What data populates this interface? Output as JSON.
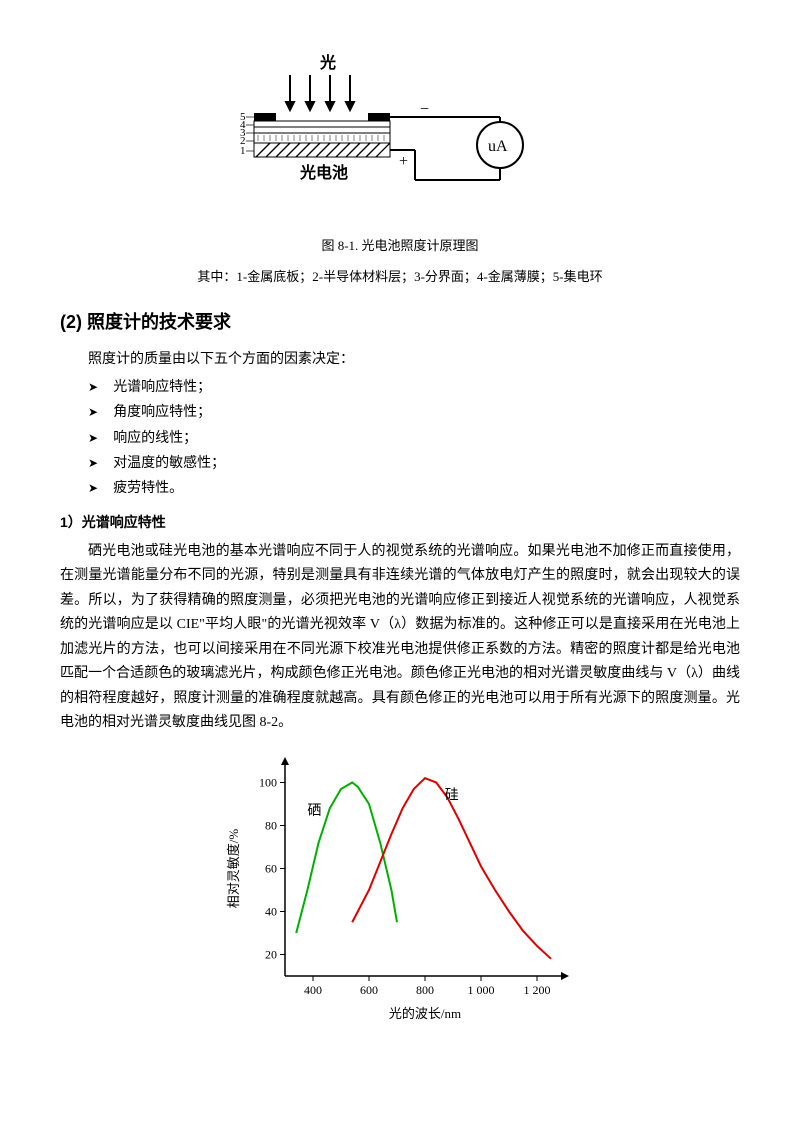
{
  "figure1": {
    "type": "diagram",
    "title": "光",
    "cell_label": "光电池",
    "meter_label": "uA",
    "minus": "−",
    "plus": "+",
    "layer_numbers": [
      "5",
      "4",
      "3",
      "2",
      "1"
    ],
    "caption": "图 8-1. 光电池照度计原理图",
    "legend": "其中：1-金属底板；2-半导体材料层；3-分界面；4-金属薄膜；5-集电环",
    "colors": {
      "stroke": "#000000",
      "bg": "#ffffff"
    }
  },
  "section_heading": "(2) 照度计的技术要求",
  "intro": "照度计的质量由以下五个方面的因素决定：",
  "bullets": [
    "光谱响应特性；",
    "角度响应特性；",
    "响应的线性；",
    "对温度的敏感性；",
    "疲劳特性。"
  ],
  "sub_heading": "1）光谱响应特性",
  "paragraph": "硒光电池或硅光电池的基本光谱响应不同于人的视觉系统的光谱响应。如果光电池不加修正而直接使用，在测量光谱能量分布不同的光源，特别是测量具有非连续光谱的气体放电灯产生的照度时，就会出现较大的误差。所以，为了获得精确的照度测量，必须把光电池的光谱响应修正到接近人视觉系统的光谱响应，人视觉系统的光谱响应是以 CIE\"平均人眼\"的光谱光视效率 V（λ）数据为标准的。这种修正可以是直接采用在光电池上加滤光片的方法，也可以间接采用在不同光源下校准光电池提供修正系数的方法。精密的照度计都是给光电池匹配一个合适颜色的玻璃滤光片，构成颜色修正光电池。颜色修正光电池的相对光谱灵敏度曲线与 V（λ）曲线的相符程度越好，照度计测量的准确程度就越高。具有颜色修正的光电池可以用于所有光源下的照度测量。光电池的相对光谱灵敏度曲线见图 8-2。",
  "chart": {
    "type": "line",
    "xlabel": "光的波长/nm",
    "ylabel": "相对灵敏度/%",
    "xlim": [
      300,
      1300
    ],
    "ylim": [
      10,
      110
    ],
    "xticks": [
      400,
      600,
      800,
      1000,
      1200
    ],
    "xtick_labels": [
      "400",
      "600",
      "800",
      "1 000",
      "1 200"
    ],
    "yticks": [
      20,
      40,
      60,
      80,
      100
    ],
    "ytick_labels": [
      "20",
      "40",
      "60",
      "80",
      "100"
    ],
    "series": [
      {
        "name": "硒",
        "label": "硒",
        "color": "#00b000",
        "label_pos": [
          380,
          85
        ],
        "points": [
          [
            340,
            30
          ],
          [
            380,
            50
          ],
          [
            420,
            72
          ],
          [
            460,
            88
          ],
          [
            500,
            97
          ],
          [
            540,
            100
          ],
          [
            560,
            98
          ],
          [
            600,
            90
          ],
          [
            640,
            72
          ],
          [
            680,
            50
          ],
          [
            700,
            35
          ]
        ]
      },
      {
        "name": "硅",
        "label": "硅",
        "color": "#e00000",
        "label_pos": [
          870,
          92
        ],
        "points": [
          [
            540,
            35
          ],
          [
            560,
            40
          ],
          [
            600,
            50
          ],
          [
            640,
            63
          ],
          [
            680,
            76
          ],
          [
            720,
            88
          ],
          [
            760,
            97
          ],
          [
            800,
            102
          ],
          [
            840,
            100
          ],
          [
            880,
            93
          ],
          [
            920,
            83
          ],
          [
            960,
            72
          ],
          [
            1000,
            61
          ],
          [
            1050,
            50
          ],
          [
            1100,
            40
          ],
          [
            1150,
            31
          ],
          [
            1200,
            24
          ],
          [
            1250,
            18
          ]
        ]
      }
    ],
    "line_width": 2,
    "background_color": "#ffffff",
    "axis_color": "#000000",
    "label_fontsize": 13,
    "tick_fontsize": 12
  }
}
